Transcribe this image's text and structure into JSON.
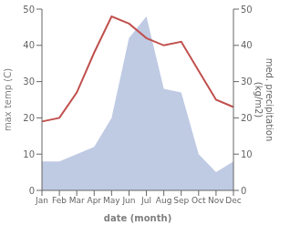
{
  "chart_data": {
    "type": "line",
    "categories": [
      "Jan",
      "Feb",
      "Mar",
      "Apr",
      "May",
      "Jun",
      "Jul",
      "Aug",
      "Sep",
      "Oct",
      "Nov",
      "Dec"
    ],
    "xlabel": "date (month)",
    "ylabel": "max temp (C)",
    "y2label": "med. precipitation\n(kg/m2)",
    "ylim": [
      0,
      50
    ],
    "yticks": [
      0,
      10,
      20,
      30,
      40,
      50
    ],
    "y2lim": [
      0,
      50
    ],
    "y2ticks": [
      0,
      10,
      20,
      30,
      40,
      50
    ],
    "grid": false,
    "series": [
      {
        "type": "area",
        "axis": "y2",
        "color": "#b8c4e0",
        "values": [
          8,
          8,
          10,
          12,
          20,
          42,
          48,
          28,
          27,
          10,
          5,
          8
        ]
      },
      {
        "type": "line",
        "color": "#c0504d",
        "values": [
          19,
          20,
          27,
          38,
          48,
          46,
          42,
          40,
          41,
          33,
          25,
          23
        ]
      }
    ]
  }
}
